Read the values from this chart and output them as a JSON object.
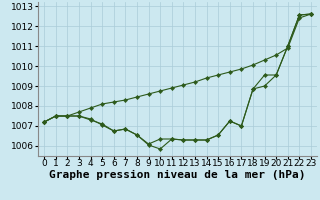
{
  "xlabel": "Graphe pression niveau de la mer (hPa)",
  "x_values": [
    0,
    1,
    2,
    3,
    4,
    5,
    6,
    7,
    8,
    9,
    10,
    11,
    12,
    13,
    14,
    15,
    16,
    17,
    18,
    19,
    20,
    21,
    22,
    23
  ],
  "line1": [
    1007.2,
    1007.5,
    1007.5,
    1007.5,
    1007.3,
    1007.1,
    1006.75,
    1006.85,
    1006.55,
    1006.05,
    1005.85,
    1006.35,
    1006.3,
    1006.3,
    1006.3,
    1006.55,
    1007.25,
    1007.0,
    1008.85,
    1009.55,
    1009.55,
    1011.0,
    1012.55,
    1012.6
  ],
  "line2": [
    1007.2,
    1007.5,
    1007.5,
    1007.5,
    1007.35,
    1007.05,
    1006.75,
    1006.85,
    1006.55,
    1006.1,
    1006.35,
    1006.35,
    1006.3,
    1006.3,
    1006.3,
    1006.55,
    1007.25,
    1007.0,
    1008.85,
    1009.0,
    1009.55,
    1011.0,
    1012.55,
    1012.6
  ],
  "line3": [
    1007.2,
    1007.5,
    1007.5,
    1007.7,
    1007.9,
    1008.1,
    1008.2,
    1008.3,
    1008.45,
    1008.6,
    1008.75,
    1008.9,
    1009.05,
    1009.2,
    1009.4,
    1009.55,
    1009.7,
    1009.85,
    1010.05,
    1010.3,
    1010.55,
    1010.9,
    1012.4,
    1012.6
  ],
  "line_color": "#2d5a1b",
  "bg_color": "#cce8f0",
  "grid_color": "#aaccd8",
  "ylim": [
    1005.5,
    1013.2
  ],
  "yticks": [
    1006,
    1007,
    1008,
    1009,
    1010,
    1011,
    1012,
    1013
  ],
  "xlabel_fontsize": 8,
  "tick_fontsize": 6.5,
  "marker_size": 2.2,
  "line_width": 0.8
}
